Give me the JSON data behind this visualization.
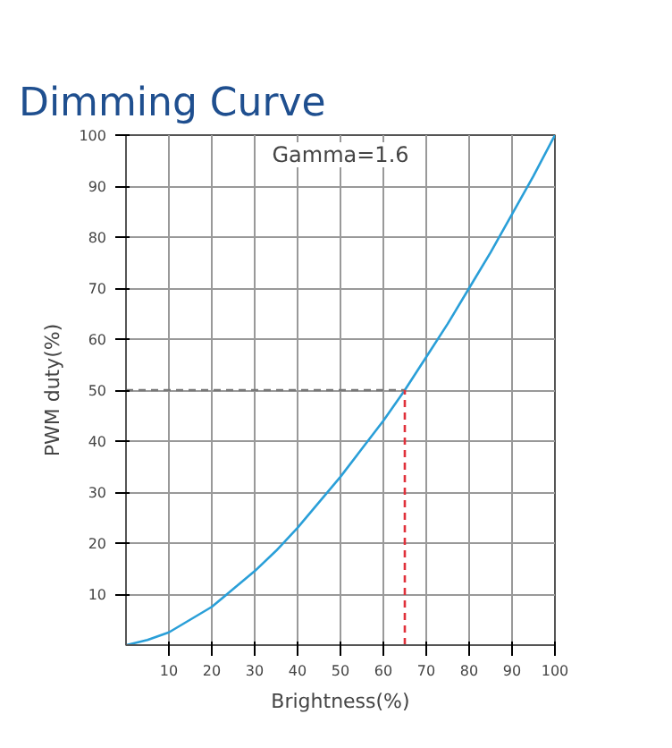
{
  "chart_data": {
    "type": "line",
    "title": "Dimming Curve",
    "xlabel": "Brightness(%)",
    "ylabel": "PWM duty(%)",
    "annotations": [
      "Gamma=1.6"
    ],
    "xlim": [
      0,
      100
    ],
    "ylim": [
      0,
      100
    ],
    "xticks": [
      10,
      20,
      30,
      40,
      50,
      60,
      70,
      80,
      90,
      100
    ],
    "yticks": [
      10,
      20,
      30,
      40,
      50,
      60,
      70,
      80,
      90,
      100
    ],
    "grid": true,
    "series": [
      {
        "color": "#2a9fd8",
        "line_style": "solid",
        "x": [
          0,
          5,
          10,
          15,
          20,
          25,
          30,
          35,
          40,
          45,
          50,
          55,
          60,
          65,
          70,
          75,
          80,
          85,
          90,
          95,
          100
        ],
        "values": [
          0,
          1,
          2.5,
          5,
          7.5,
          11,
          14.5,
          18.5,
          23,
          28,
          33,
          38.5,
          44,
          50,
          56.5,
          63,
          70,
          77,
          84.5,
          92,
          100
        ]
      },
      {
        "color": "#777777",
        "line_style": "dashed",
        "x": [
          0,
          65
        ],
        "values": [
          50,
          50
        ]
      },
      {
        "color": "#e0303a",
        "line_style": "dashed",
        "x": [
          65,
          65
        ],
        "values": [
          0,
          50
        ]
      }
    ]
  }
}
